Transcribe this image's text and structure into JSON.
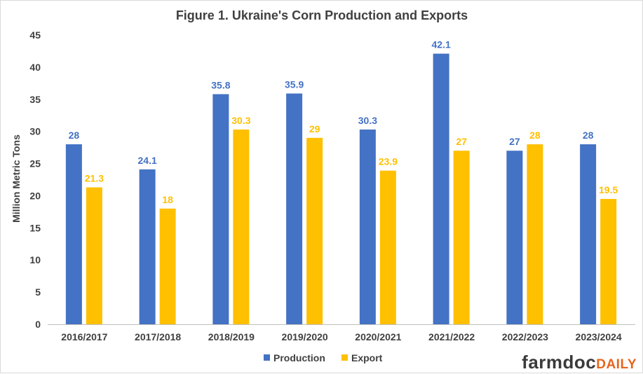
{
  "chart_data": {
    "type": "bar",
    "title": "Figure 1. Ukraine's Corn Production and Exports",
    "ylabel": "Million Metric Tons",
    "xlabel": "",
    "ylim": [
      0,
      45
    ],
    "yticks": [
      "0",
      "5",
      "10",
      "15",
      "20",
      "25",
      "30",
      "35",
      "40",
      "45"
    ],
    "yticks_values": [
      0,
      5,
      10,
      15,
      20,
      25,
      30,
      35,
      40,
      45
    ],
    "grid": false,
    "legend_position": "bottom",
    "categories": [
      "2016/2017",
      "2017/2018",
      "2018/2019",
      "2019/2020",
      "2020/2021",
      "2021/2022",
      "2022/2023",
      "2023/2024"
    ],
    "series": [
      {
        "name": "Production",
        "color": "#4472c4",
        "values": [
          28,
          24.1,
          35.8,
          35.9,
          30.3,
          42.1,
          27,
          28
        ],
        "labels": [
          "28",
          "24.1",
          "35.8",
          "35.9",
          "30.3",
          "42.1",
          "27",
          "28"
        ]
      },
      {
        "name": "Export",
        "color": "#ffc000",
        "values": [
          21.3,
          18,
          30.3,
          29,
          23.9,
          27,
          28,
          19.5
        ],
        "labels": [
          "21.3",
          "18",
          "30.3",
          "29",
          "23.9",
          "27",
          "28",
          "19.5"
        ]
      }
    ]
  },
  "branding": {
    "main": "farmdoc",
    "sub": "DAILY",
    "main_color": "#3a3a3a",
    "sub_color": "#e8641b"
  }
}
